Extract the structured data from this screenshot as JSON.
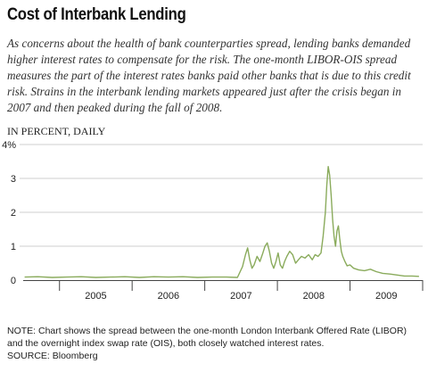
{
  "header": {
    "title": "Cost of Interbank Lending",
    "description": "As concerns about the health of bank counterparties spread, lending banks demanded higher interest rates to compensate for the risk.  The one-month LIBOR-OIS spread measures the part of the interest rates banks paid other banks that is due to this credit risk.  Strains in the interbank lending markets appeared  just after the crisis began in 2007 and then peaked during the fall of 2008."
  },
  "chart_data": {
    "type": "line",
    "ylabel": "IN PERCENT, DAILY",
    "x_range": [
      2004.5,
      2010.0
    ],
    "ylim": [
      0,
      4
    ],
    "yticks": [
      0,
      1,
      2,
      3,
      4
    ],
    "ytick_labels": [
      "0",
      "1",
      "2",
      "3",
      "4%"
    ],
    "xtick_labels": [
      "2005",
      "2006",
      "2007",
      "2008",
      "2009"
    ],
    "grid": "horizontal",
    "series": [
      {
        "color": "#8aab5c",
        "x": [
          2004.52,
          2004.7,
          2004.9,
          2005.1,
          2005.3,
          2005.5,
          2005.7,
          2005.9,
          2006.1,
          2006.3,
          2006.5,
          2006.7,
          2006.9,
          2007.1,
          2007.3,
          2007.45,
          2007.52,
          2007.56,
          2007.59,
          2007.62,
          2007.65,
          2007.68,
          2007.72,
          2007.76,
          2007.8,
          2007.83,
          2007.86,
          2007.89,
          2007.92,
          2007.95,
          2007.98,
          2008.01,
          2008.04,
          2008.07,
          2008.1,
          2008.13,
          2008.17,
          2008.21,
          2008.25,
          2008.29,
          2008.33,
          2008.38,
          2008.43,
          2008.48,
          2008.52,
          2008.56,
          2008.6,
          2008.63,
          2008.66,
          2008.68,
          2008.7,
          2008.72,
          2008.74,
          2008.76,
          2008.78,
          2008.8,
          2008.82,
          2008.84,
          2008.86,
          2008.88,
          2008.9,
          2008.93,
          2008.96,
          2009.0,
          2009.05,
          2009.12,
          2009.2,
          2009.28,
          2009.36,
          2009.45,
          2009.55,
          2009.65,
          2009.75,
          2009.85,
          2009.95
        ],
        "values": [
          0.09,
          0.1,
          0.08,
          0.09,
          0.1,
          0.08,
          0.09,
          0.1,
          0.08,
          0.1,
          0.09,
          0.1,
          0.08,
          0.09,
          0.09,
          0.08,
          0.4,
          0.75,
          0.95,
          0.6,
          0.35,
          0.45,
          0.7,
          0.55,
          0.8,
          1.0,
          1.1,
          0.85,
          0.5,
          0.35,
          0.55,
          0.8,
          0.45,
          0.35,
          0.55,
          0.7,
          0.85,
          0.75,
          0.5,
          0.6,
          0.7,
          0.65,
          0.75,
          0.6,
          0.75,
          0.7,
          0.8,
          1.3,
          2.0,
          2.8,
          3.35,
          3.1,
          2.5,
          1.8,
          1.3,
          1.0,
          1.45,
          1.6,
          1.2,
          0.85,
          0.7,
          0.55,
          0.42,
          0.45,
          0.35,
          0.3,
          0.28,
          0.32,
          0.25,
          0.2,
          0.18,
          0.15,
          0.12,
          0.12,
          0.11
        ]
      }
    ]
  },
  "footer": {
    "note": "NOTE: Chart shows the spread between the one-month London Interbank Offered Rate (LIBOR) and the overnight index swap rate (OIS), both closely watched interest rates.",
    "source": "SOURCE: Bloomberg"
  }
}
